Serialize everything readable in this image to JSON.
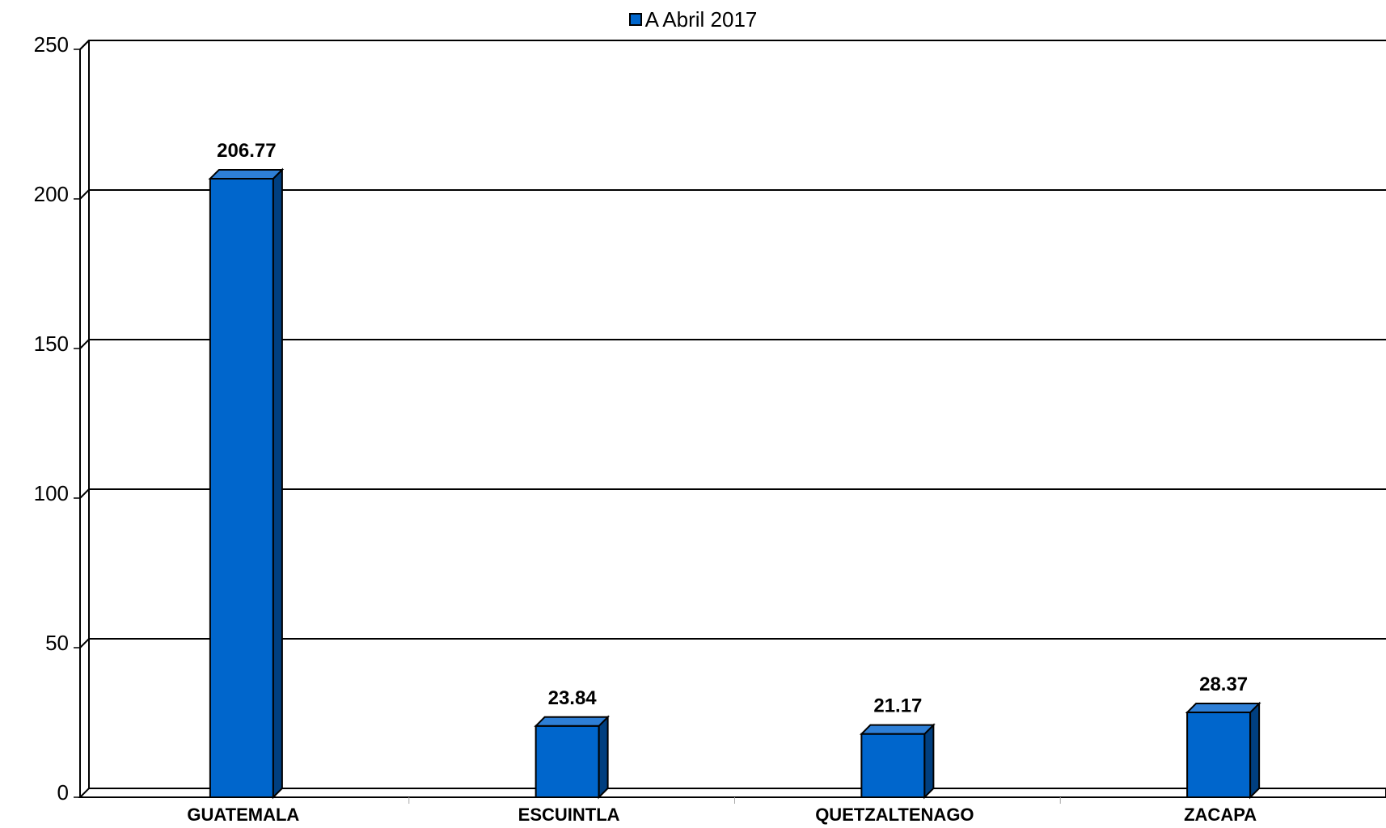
{
  "chart_data": {
    "type": "bar",
    "categories": [
      "GUATEMALA",
      "ESCUINTLA",
      "QUETZALTENAGO",
      "ZACAPA"
    ],
    "series": [
      {
        "name": "A Abril 2017",
        "values": [
          206.77,
          23.84,
          21.17,
          28.37
        ],
        "labels": [
          "206.77",
          "23.84",
          "21.17",
          "28.37"
        ]
      }
    ],
    "ylim": [
      0,
      250
    ],
    "yticks": [
      "0",
      "50",
      "100",
      "150",
      "200",
      "250"
    ],
    "grid": true,
    "legend_position": "top-center",
    "bar_style": "3d",
    "colors": {
      "bar_front": "#0066CC",
      "bar_side": "#003F80",
      "bar_top": "#2E7FD6",
      "outline": "#000000"
    }
  }
}
